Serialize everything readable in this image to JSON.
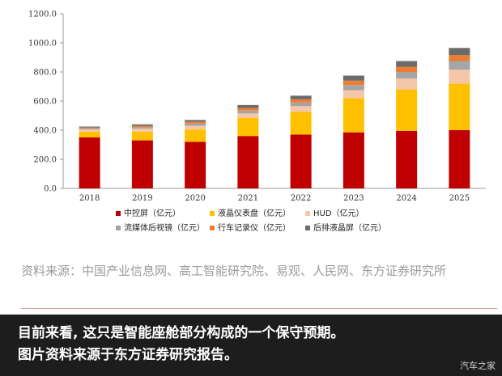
{
  "chart_data": {
    "type": "stacked-bar",
    "categories": [
      "2018",
      "2019",
      "2020",
      "2021",
      "2022",
      "2023",
      "2024",
      "2025"
    ],
    "y_ticks": [
      "0.0",
      "200.0",
      "400.0",
      "600.0",
      "800.0",
      "1000.0",
      "1200.0"
    ],
    "ylim": [
      0,
      1200
    ],
    "series": [
      {
        "name": "中控屏（亿元）",
        "color": "#c00000",
        "values": [
          350,
          330,
          320,
          360,
          370,
          385,
          395,
          400
        ]
      },
      {
        "name": "液晶仪表盘（亿元）",
        "color": "#ffc000",
        "values": [
          40,
          60,
          85,
          125,
          155,
          235,
          285,
          320
        ]
      },
      {
        "name": "HUD（亿元）",
        "color": "#f4c7a8",
        "values": [
          15,
          20,
          25,
          30,
          40,
          55,
          75,
          95
        ]
      },
      {
        "name": "流媒体后视镜（亿元）",
        "color": "#a5a5a5",
        "values": [
          8,
          12,
          15,
          20,
          25,
          35,
          45,
          60
        ]
      },
      {
        "name": "行车记录仪（亿元）",
        "color": "#ed7d31",
        "values": [
          5,
          8,
          12,
          18,
          22,
          30,
          35,
          40
        ]
      },
      {
        "name": "后排液晶屏（亿元）",
        "color": "#6b6b6b",
        "values": [
          7,
          10,
          13,
          20,
          25,
          35,
          40,
          50
        ]
      }
    ]
  },
  "source_text": "资料来源：中国产业信息网、高工智能研究院、易观、人民网、东方证券研究所",
  "caption": {
    "line1": "目前来看, 这只是智能座舱部分构成的一个保守预期。",
    "line2": "图片资料来源于东方证券研究报告。"
  },
  "watermark": "汽车之家"
}
